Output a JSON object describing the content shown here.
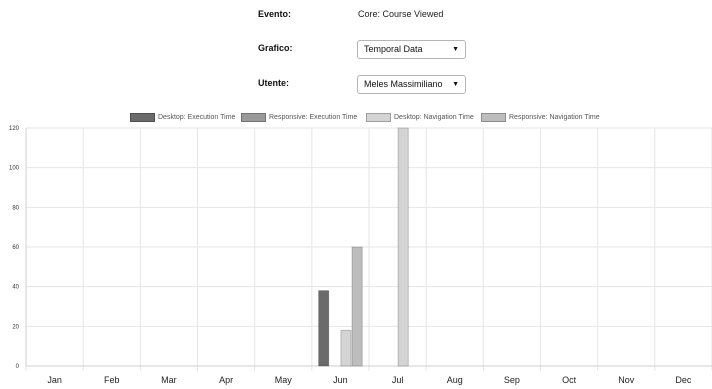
{
  "form": {
    "evento": {
      "label": "Evento:",
      "value": "Core: Course Viewed"
    },
    "grafico": {
      "label": "Grafico:",
      "selected": "Temporal Data"
    },
    "utente": {
      "label": "Utente:",
      "selected": "Meles Massimiliano"
    }
  },
  "colors": {
    "desktop_execution": "#6b6b6b",
    "responsive_execution": "#9a9a9a",
    "desktop_navigation": "#d4d4d4",
    "responsive_navigation": "#bdbdbd",
    "grid": "#e6e6e6"
  },
  "chart_data": {
    "type": "bar",
    "categories": [
      "Jan",
      "Feb",
      "Mar",
      "Apr",
      "May",
      "Jun",
      "Jul",
      "Aug",
      "Sep",
      "Oct",
      "Nov",
      "Dec"
    ],
    "series": [
      {
        "name": "Desktop: Execution Time",
        "values": [
          0,
          0,
          0,
          0,
          0,
          38,
          0,
          0,
          0,
          0,
          0,
          0
        ]
      },
      {
        "name": "Responsive: Execution Time",
        "values": [
          0,
          0,
          0,
          0,
          0,
          0,
          0,
          0,
          0,
          0,
          0,
          0
        ]
      },
      {
        "name": "Desktop: Navigation Time",
        "values": [
          0,
          0,
          0,
          0,
          0,
          18,
          120,
          0,
          0,
          0,
          0,
          0
        ]
      },
      {
        "name": "Responsive: Navigation Time",
        "values": [
          0,
          0,
          0,
          0,
          0,
          60,
          0,
          0,
          0,
          0,
          0,
          0
        ]
      }
    ],
    "yticks": [
      "0",
      "20",
      "40",
      "60",
      "80",
      "100",
      "120"
    ],
    "ylim": [
      0,
      120
    ],
    "grid": true,
    "legend_position": "top"
  }
}
